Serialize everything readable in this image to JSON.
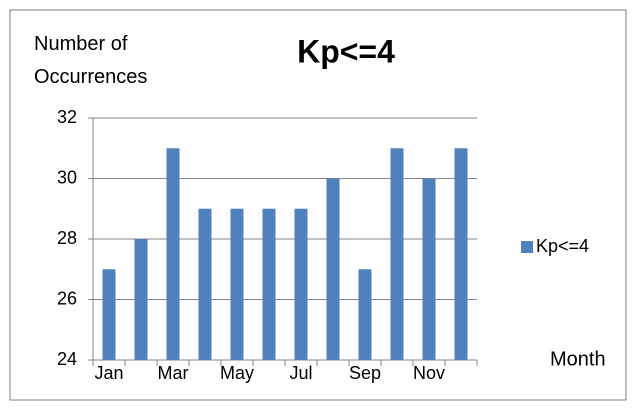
{
  "chart_data": {
    "type": "bar",
    "title": "Kp<=4",
    "y_label": "Number of Occurrences",
    "x_label": "Month",
    "categories": [
      "Jan",
      null,
      "Mar",
      null,
      "May",
      null,
      "Jul",
      null,
      "Sep",
      null,
      "Nov",
      null
    ],
    "series": [
      {
        "name": "Kp<=4",
        "color": "#4f81bd",
        "values": [
          27,
          28,
          31,
          29,
          29,
          29,
          29,
          30,
          27,
          31,
          30,
          31
        ]
      }
    ],
    "ylim": [
      24,
      32
    ],
    "yticks": [
      24,
      26,
      28,
      30,
      32
    ],
    "grid": true,
    "legend": "right"
  }
}
